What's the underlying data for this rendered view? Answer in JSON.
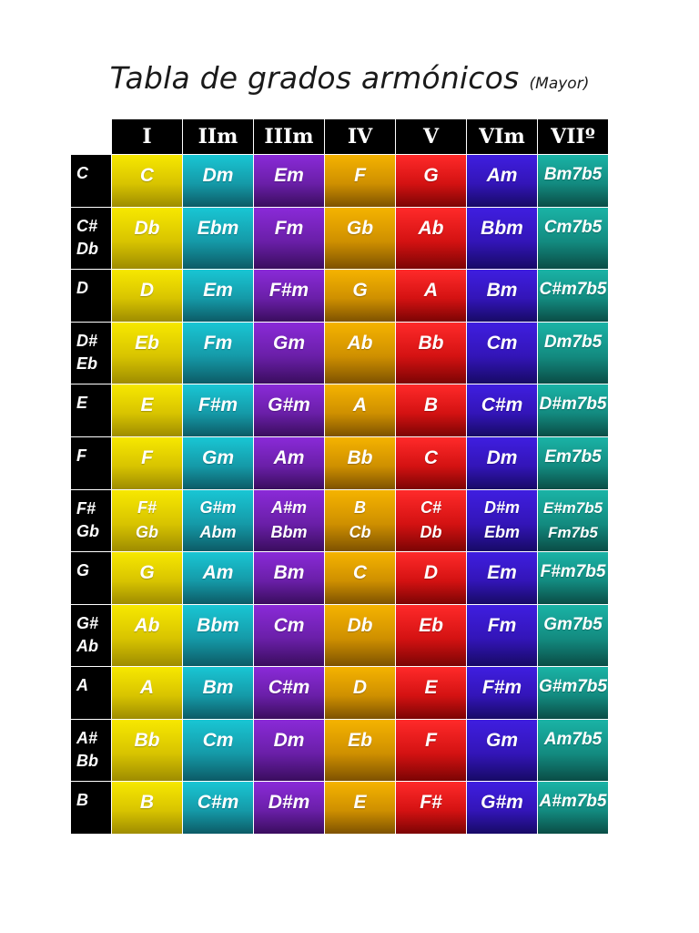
{
  "title": {
    "main": "Tabla de grados armónicos",
    "sub": "(Mayor)"
  },
  "table": {
    "column_colors": [
      "#e8d800",
      "#17aab8",
      "#7a25c0",
      "#e5a300",
      "#e81e1e",
      "#3a1ad0",
      "#169e92"
    ],
    "headers": [
      "I",
      "IIm",
      "IIIm",
      "IV",
      "V",
      "VIm",
      "VIIº"
    ],
    "rows": [
      {
        "key": "C",
        "chords": [
          "C",
          "Dm",
          "Em",
          "F",
          "G",
          "Am",
          "Bm7b5"
        ]
      },
      {
        "key": "C#\nDb",
        "chords": [
          "Db",
          "Ebm",
          "Fm",
          "Gb",
          "Ab",
          "Bbm",
          "Cm7b5"
        ]
      },
      {
        "key": "D",
        "chords": [
          "D",
          "Em",
          "F#m",
          "G",
          "A",
          "Bm",
          "C#m7b5"
        ]
      },
      {
        "key": "D#\nEb",
        "chords": [
          "Eb",
          "Fm",
          "Gm",
          "Ab",
          "Bb",
          "Cm",
          "Dm7b5"
        ]
      },
      {
        "key": "E",
        "chords": [
          "E",
          "F#m",
          "G#m",
          "A",
          "B",
          "C#m",
          "D#m7b5"
        ]
      },
      {
        "key": "F",
        "chords": [
          "F",
          "Gm",
          "Am",
          "Bb",
          "C",
          "Dm",
          "Em7b5"
        ]
      },
      {
        "key": "F#\nGb",
        "chords": [
          "F#\nGb",
          "G#m\nAbm",
          "A#m\nBbm",
          "B\nCb",
          "C#\nDb",
          "D#m\nEbm",
          "E#m7b5\nFm7b5"
        ]
      },
      {
        "key": "G",
        "chords": [
          "G",
          "Am",
          "Bm",
          "C",
          "D",
          "Em",
          "F#m7b5"
        ]
      },
      {
        "key": "G#\nAb",
        "chords": [
          "Ab",
          "Bbm",
          "Cm",
          "Db",
          "Eb",
          "Fm",
          "Gm7b5"
        ]
      },
      {
        "key": "A",
        "chords": [
          "A",
          "Bm",
          "C#m",
          "D",
          "E",
          "F#m",
          "G#m7b5"
        ]
      },
      {
        "key": "A#\nBb",
        "chords": [
          "Bb",
          "Cm",
          "Dm",
          "Eb",
          "F",
          "Gm",
          "Am7b5"
        ]
      },
      {
        "key": "B",
        "chords": [
          "B",
          "C#m",
          "D#m",
          "E",
          "F#",
          "G#m",
          "A#m7b5"
        ]
      }
    ]
  }
}
